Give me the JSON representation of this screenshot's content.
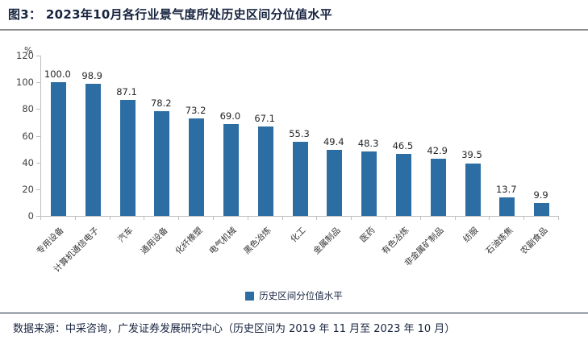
{
  "title": "图3：  2023年10月各行业景气度所处历史区间分位值水平",
  "footer": {
    "source_text": "数据来源：中采咨询，广发证券发展研究中心（历史区间为 2019 年 11 月至 2023 年 10 月）"
  },
  "colors": {
    "bar": "#2c6da3",
    "title_text": "#17233f",
    "axis_line": "#bfbfbf"
  },
  "chart_data": {
    "type": "bar",
    "title": "2023年10月各行业景气度所处历史区间分位值水平",
    "unit_label": "%",
    "categories": [
      "专用设备",
      "计算机通信电子",
      "汽车",
      "通用设备",
      "化纤橡塑",
      "电气机械",
      "黑色冶炼",
      "化工",
      "金属制品",
      "医药",
      "有色冶炼",
      "非金属矿制品",
      "纺服",
      "石油炼焦",
      "农副食品"
    ],
    "values": [
      100.0,
      98.9,
      87.1,
      78.2,
      73.2,
      69.0,
      67.1,
      55.3,
      49.4,
      48.3,
      46.5,
      42.9,
      39.5,
      13.7,
      9.9
    ],
    "ylim": [
      0,
      120
    ],
    "yticks": [
      0,
      20,
      40,
      60,
      80,
      100,
      120
    ],
    "grid": false,
    "legend_position": "bottom",
    "legend": [
      "历史区间分位值水平"
    ],
    "xlabel": "",
    "ylabel": "%"
  }
}
